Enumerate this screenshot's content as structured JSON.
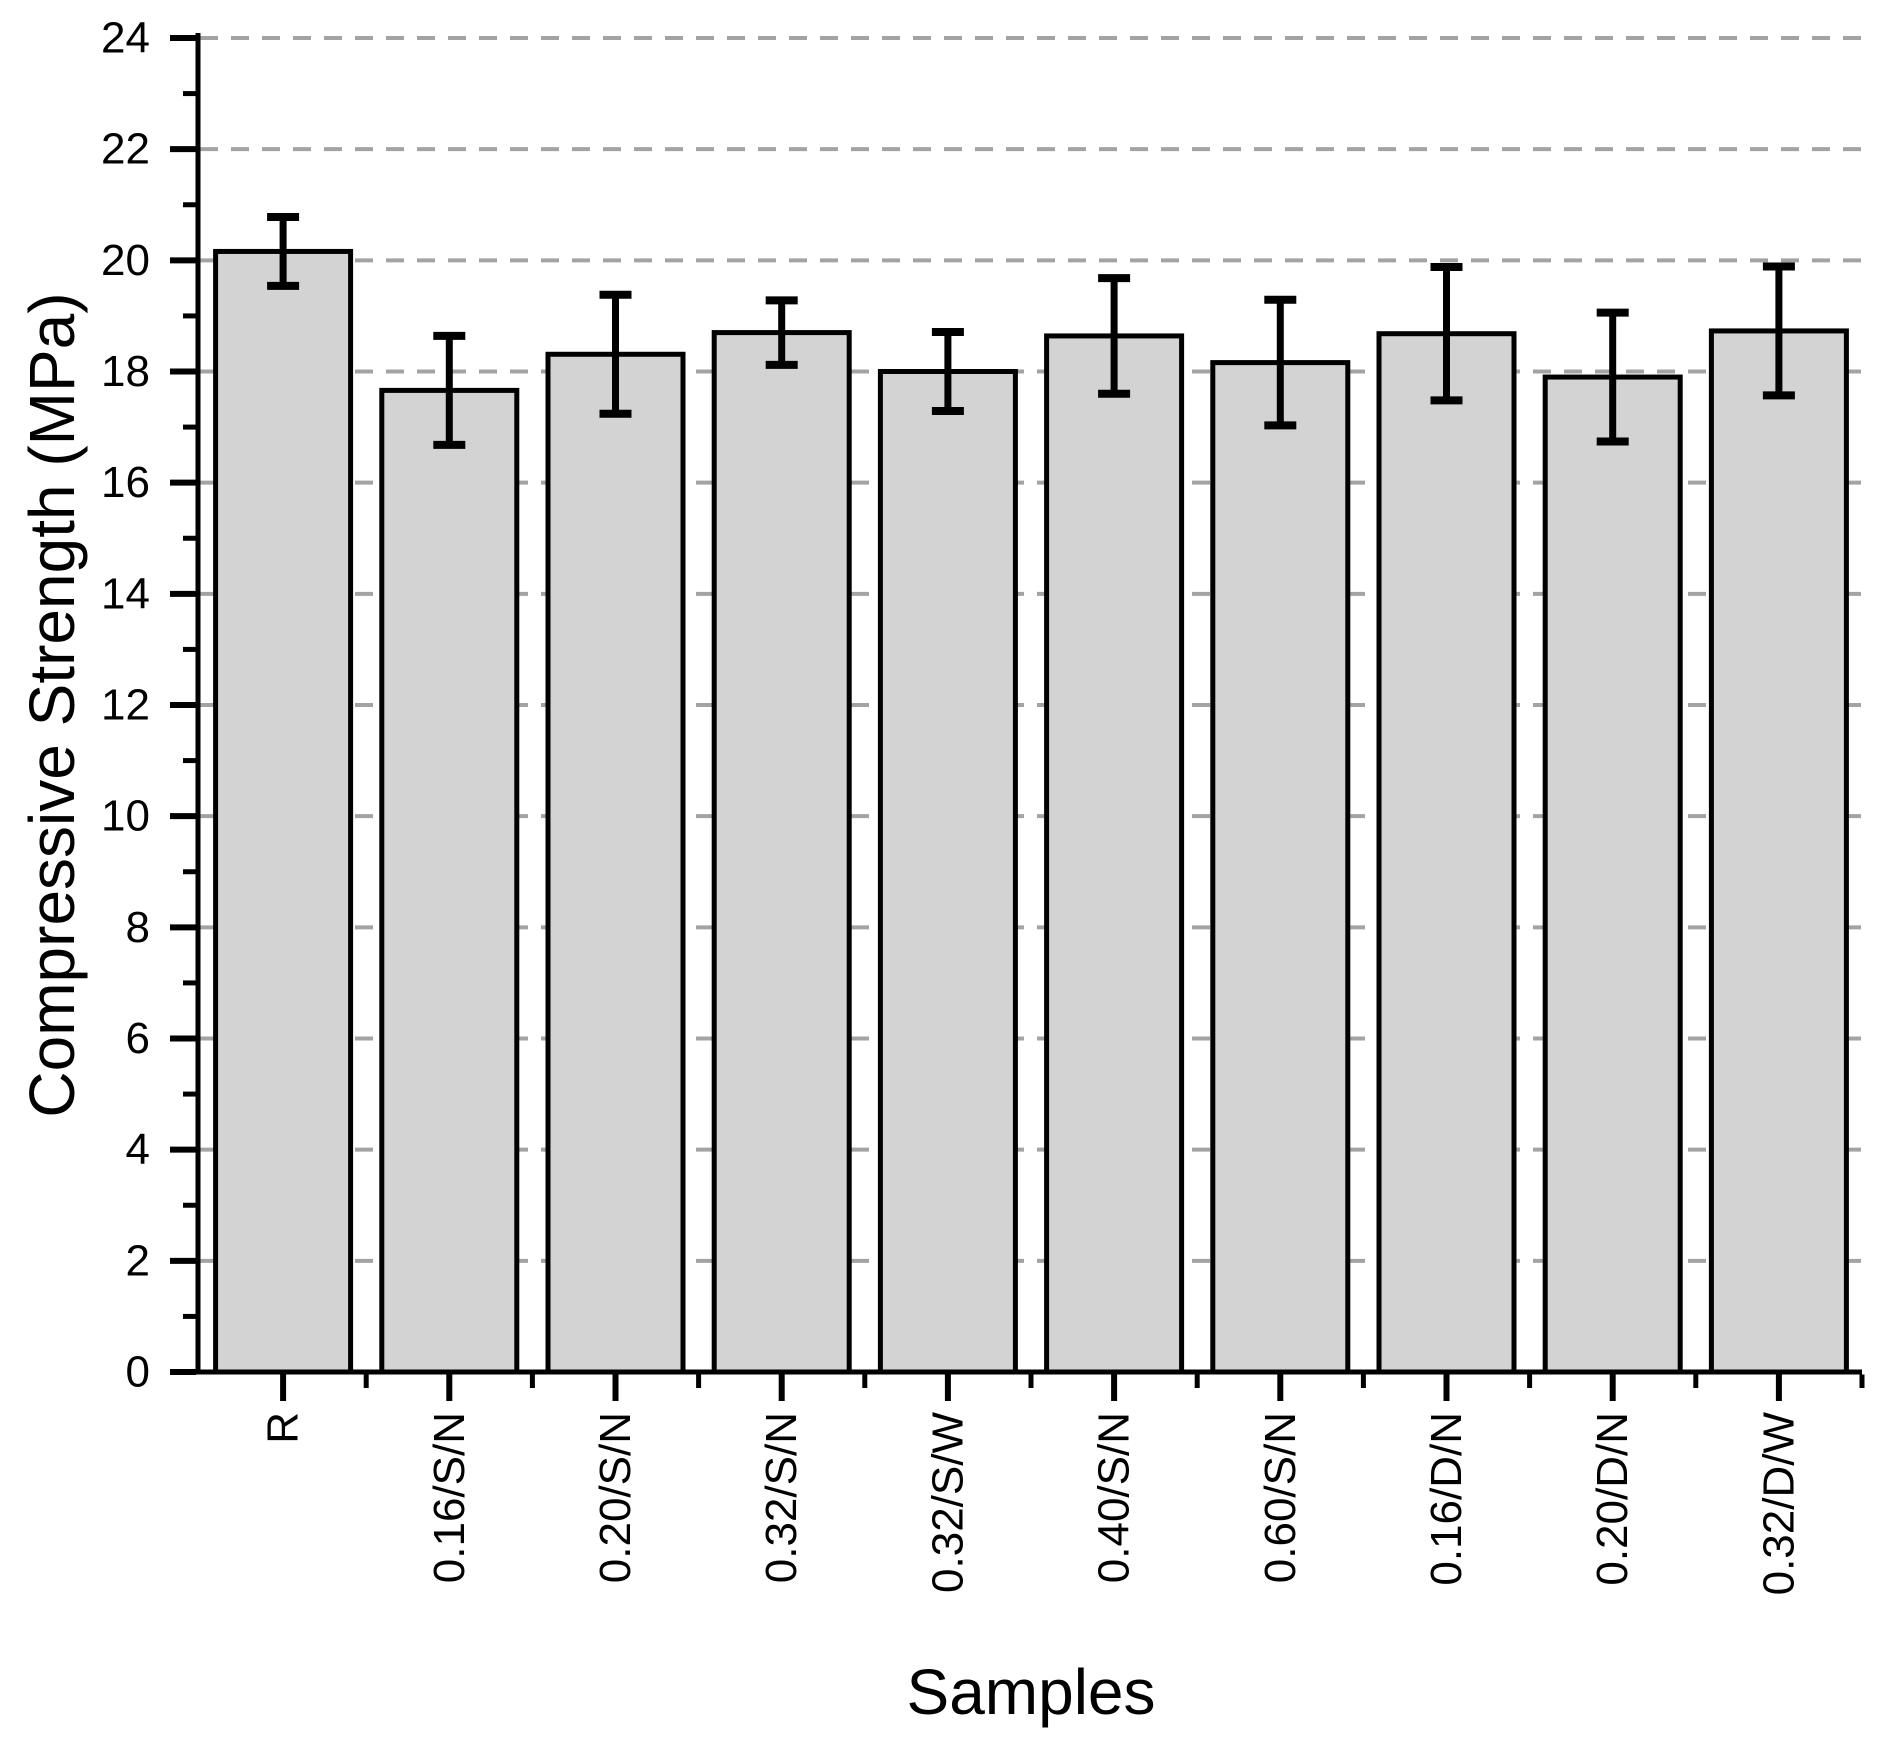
{
  "chart_data": {
    "type": "bar",
    "title": "",
    "xlabel": "Samples",
    "ylabel": "Compressive Strength (MPa)",
    "categories": [
      "R",
      "0.16/S/N",
      "0.20/S/N",
      "0.32/S/N",
      "0.32/S/W",
      "0.40/S/N",
      "0.60/S/N",
      "0.16/D/N",
      "0.20/D/N",
      "0.32/D/W"
    ],
    "values": [
      20.16,
      17.66,
      18.31,
      18.7,
      18.0,
      18.64,
      18.16,
      18.68,
      17.9,
      18.73
    ],
    "errors": [
      0.62,
      0.98,
      1.07,
      0.58,
      0.71,
      1.04,
      1.13,
      1.2,
      1.16,
      1.16
    ],
    "ylim": [
      0,
      24
    ],
    "y_major_step": 2,
    "y_minor_step": 1,
    "y_tick_labels": [
      "0",
      "2",
      "4",
      "6",
      "8",
      "10",
      "12",
      "14",
      "16",
      "18",
      "20",
      "22",
      "24"
    ],
    "x_tick_labels_rotation_deg": 90,
    "grid": "horizontal dashed lines at major y ticks",
    "legend": "none",
    "colors": {
      "bar_fill": "#d3d3d3",
      "bar_border": "#000000",
      "error_bar": "#000000",
      "gridline": "#a3a3a3",
      "axis": "#000000",
      "text": "#000000",
      "background": "#ffffff"
    }
  }
}
